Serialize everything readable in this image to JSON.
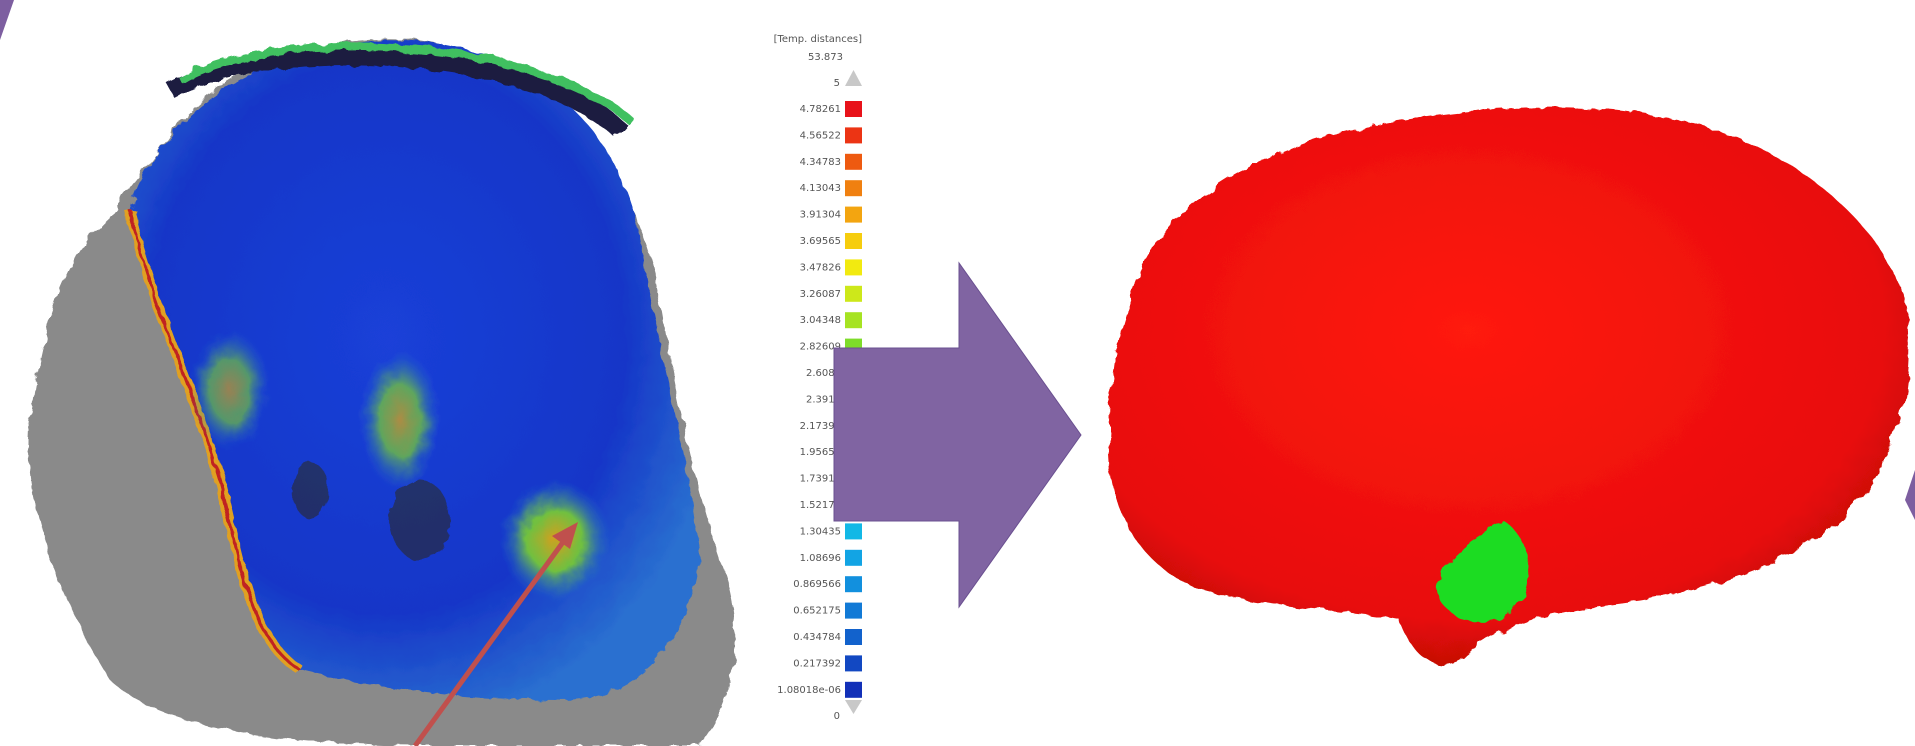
{
  "legend": {
    "title": "[Temp. distances]",
    "max": "53.873",
    "top": "5",
    "bottom": "0",
    "swatches": [
      {
        "label": "4.78261",
        "color": "#e8121a"
      },
      {
        "label": "4.56522",
        "color": "#ec3414"
      },
      {
        "label": "4.34783",
        "color": "#ee5a10"
      },
      {
        "label": "4.13043",
        "color": "#f08010"
      },
      {
        "label": "3.91304",
        "color": "#f3a510"
      },
      {
        "label": "3.69565",
        "color": "#f6cd0e"
      },
      {
        "label": "3.47826",
        "color": "#f2ea10"
      },
      {
        "label": "3.26087",
        "color": "#cde81a"
      },
      {
        "label": "3.04348",
        "color": "#a6e322"
      },
      {
        "label": "2.82609",
        "color": "#7edc2a"
      },
      {
        "label": "2.6087",
        "color": "#5cd83a"
      },
      {
        "label": "2.3913",
        "color": "#42d45a"
      },
      {
        "label": "2.17391",
        "color": "#30d080"
      },
      {
        "label": "1.95652",
        "color": "#22cca6"
      },
      {
        "label": "1.73913",
        "color": "#1ac8c4"
      },
      {
        "label": "1.52174",
        "color": "#14c4dc"
      },
      {
        "label": "1.30435",
        "color": "#12b8e6"
      },
      {
        "label": "1.08696",
        "color": "#12a4e4"
      },
      {
        "label": "0.869566",
        "color": "#1290de"
      },
      {
        "label": "0.652175",
        "color": "#127ad6"
      },
      {
        "label": "0.434784",
        "color": "#1262cc"
      },
      {
        "label": "0.217392",
        "color": "#1248c2"
      },
      {
        "label": "1.08018e-06",
        "color": "#1230b8"
      }
    ]
  }
}
